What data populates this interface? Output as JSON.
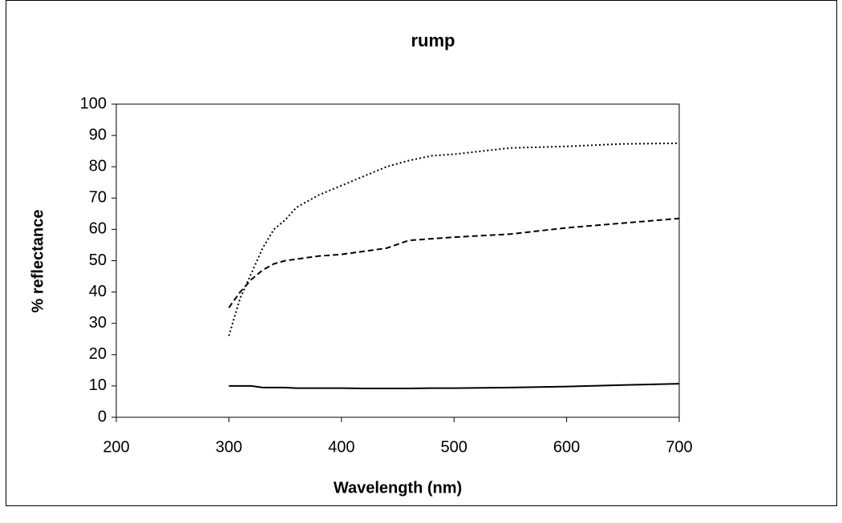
{
  "chart_data": {
    "type": "line",
    "title": "rump",
    "x_label": "Wavelength (nm)",
    "y_label": "% reflectance",
    "x": [
      300,
      310,
      320,
      330,
      340,
      350,
      360,
      380,
      400,
      420,
      440,
      460,
      480,
      500,
      550,
      600,
      650,
      700
    ],
    "series": [
      {
        "color": "#000000",
        "line_style": "dotted",
        "values": [
          26,
          38,
          46,
          54,
          60,
          63,
          67,
          71,
          74,
          77,
          80,
          82,
          83.5,
          84,
          86,
          86.5,
          87.3,
          87.5
        ]
      },
      {
        "color": "#000000",
        "line_style": "dashed",
        "values": [
          35,
          40,
          44,
          47,
          49,
          50,
          50.5,
          51.5,
          52,
          53,
          54,
          56.5,
          57,
          57.5,
          58.5,
          60.5,
          62,
          63.5
        ]
      },
      {
        "color": "#000000",
        "line_style": "solid",
        "values": [
          10,
          10,
          10,
          9.5,
          9.5,
          9.5,
          9.3,
          9.3,
          9.3,
          9.2,
          9.2,
          9.2,
          9.3,
          9.3,
          9.5,
          9.8,
          10.3,
          10.7
        ]
      }
    ],
    "xlim": [
      200,
      700
    ],
    "xticks": [
      200,
      300,
      400,
      500,
      600,
      700
    ],
    "ylim": [
      0,
      100
    ],
    "yticks": [
      0,
      10,
      20,
      30,
      40,
      50,
      60,
      70,
      80,
      90,
      100
    ],
    "grid": false
  }
}
